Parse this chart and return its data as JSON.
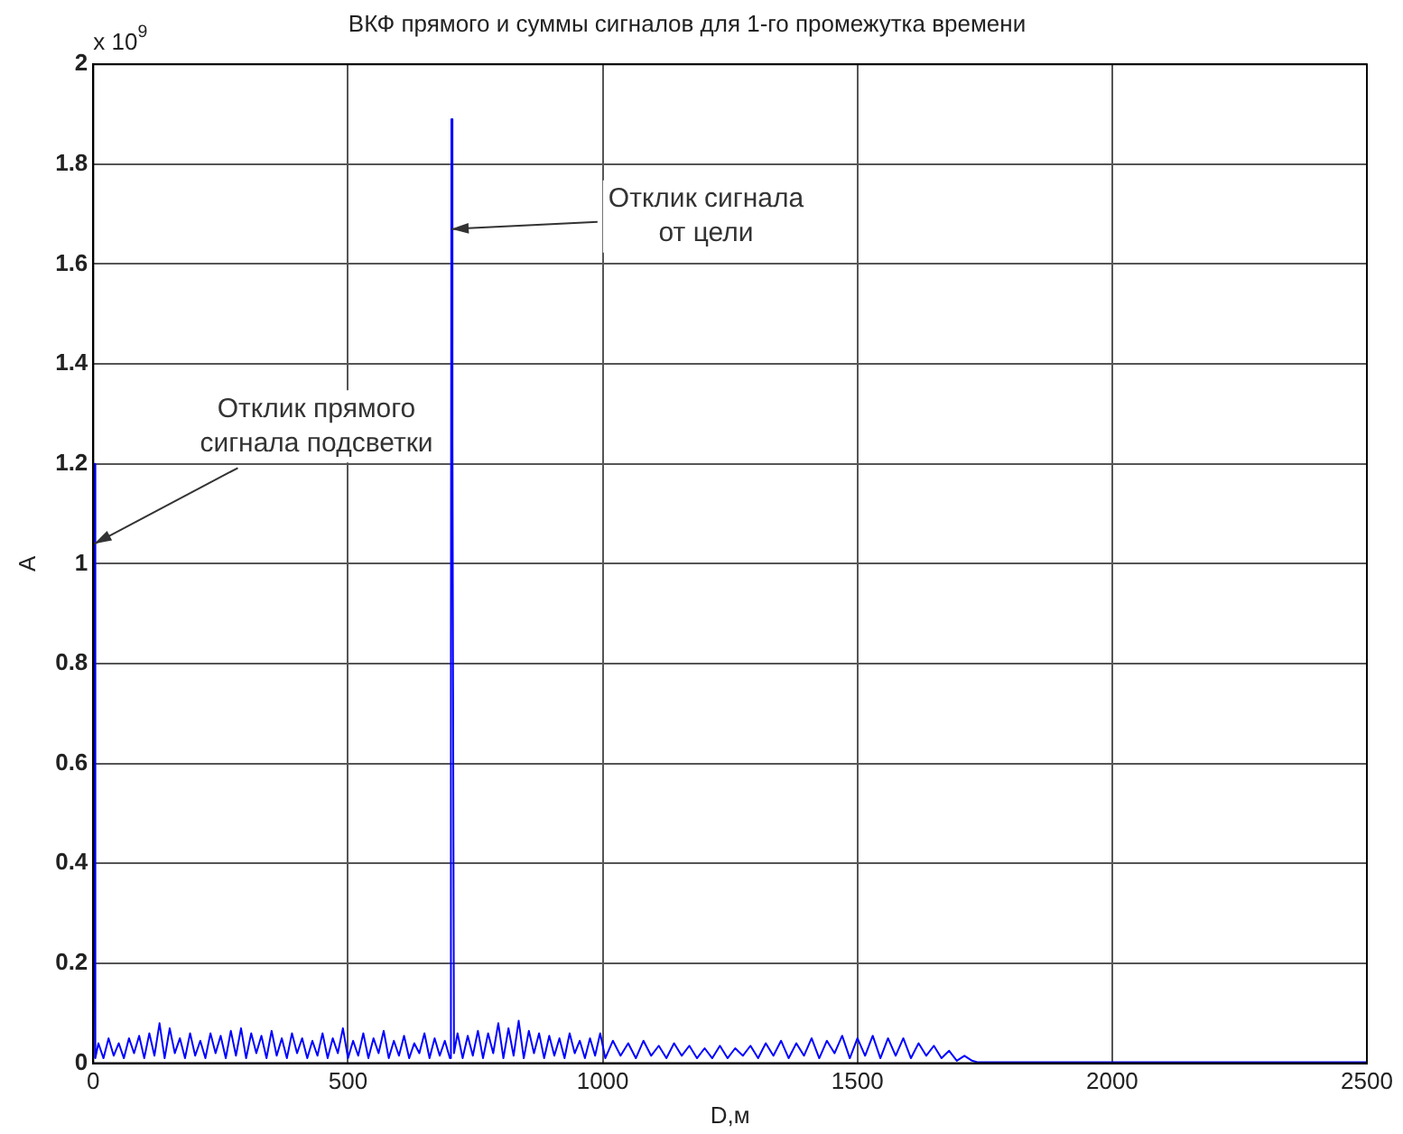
{
  "chart_data": {
    "type": "line",
    "title": "ВКФ прямого и суммы сигналов для 1-го промежутка времени",
    "xlabel": "D,м",
    "ylabel": "A",
    "xlim": [
      0,
      2500
    ],
    "xticks": [
      0,
      500,
      1000,
      1500,
      2000,
      2500
    ],
    "ylim": [
      0,
      2
    ],
    "yticks": [
      0,
      0.2,
      0.4,
      0.6,
      0.8,
      1,
      1.2,
      1.4,
      1.6,
      1.8,
      2
    ],
    "grid": true,
    "marker": "none",
    "line_style": "solid",
    "annotations": [
      "x 10$^{9}$",
      {
        "text": "Отклик прямого\nсигнала подсветки",
        "x": 2,
        "y": 1.04
      },
      {
        "text": "Отклик сигнала\nот цели",
        "x": 703,
        "y": 1.67
      }
    ],
    "series": [
      {
        "color": "#0000ff",
        "x": [
          0,
          2,
          4,
          10,
          20,
          30,
          40,
          50,
          60,
          70,
          80,
          90,
          100,
          110,
          120,
          130,
          140,
          150,
          160,
          170,
          180,
          190,
          200,
          210,
          220,
          230,
          240,
          250,
          260,
          270,
          280,
          290,
          300,
          310,
          320,
          330,
          340,
          350,
          360,
          370,
          380,
          390,
          400,
          410,
          420,
          430,
          440,
          450,
          460,
          470,
          480,
          490,
          500,
          510,
          520,
          530,
          540,
          550,
          560,
          570,
          580,
          590,
          600,
          610,
          620,
          630,
          640,
          650,
          660,
          670,
          680,
          690,
          700,
          702,
          703,
          705,
          708,
          715,
          725,
          735,
          745,
          755,
          765,
          775,
          785,
          795,
          805,
          815,
          825,
          835,
          845,
          855,
          865,
          875,
          885,
          895,
          905,
          915,
          925,
          935,
          945,
          955,
          965,
          975,
          985,
          995,
          1005,
          1020,
          1035,
          1050,
          1065,
          1080,
          1095,
          1110,
          1125,
          1140,
          1155,
          1170,
          1185,
          1200,
          1215,
          1230,
          1245,
          1260,
          1275,
          1290,
          1305,
          1320,
          1335,
          1350,
          1365,
          1380,
          1395,
          1410,
          1425,
          1440,
          1455,
          1470,
          1485,
          1500,
          1515,
          1530,
          1545,
          1560,
          1575,
          1590,
          1605,
          1620,
          1635,
          1650,
          1665,
          1680,
          1695,
          1710,
          1725,
          1735,
          2500
        ],
        "values": [
          0.01,
          1.2,
          0.01,
          0.04,
          0.01,
          0.05,
          0.015,
          0.04,
          0.01,
          0.05,
          0.02,
          0.055,
          0.01,
          0.06,
          0.015,
          0.08,
          0.01,
          0.07,
          0.02,
          0.05,
          0.01,
          0.06,
          0.015,
          0.045,
          0.01,
          0.06,
          0.02,
          0.055,
          0.01,
          0.065,
          0.015,
          0.07,
          0.01,
          0.06,
          0.02,
          0.055,
          0.01,
          0.065,
          0.015,
          0.05,
          0.01,
          0.06,
          0.02,
          0.05,
          0.01,
          0.045,
          0.015,
          0.06,
          0.01,
          0.05,
          0.02,
          0.07,
          0.01,
          0.045,
          0.015,
          0.06,
          0.01,
          0.05,
          0.02,
          0.065,
          0.01,
          0.045,
          0.015,
          0.055,
          0.01,
          0.04,
          0.02,
          0.06,
          0.01,
          0.05,
          0.015,
          0.045,
          0.01,
          0.84,
          1.89,
          1.25,
          0.02,
          0.06,
          0.01,
          0.055,
          0.015,
          0.065,
          0.01,
          0.06,
          0.02,
          0.08,
          0.01,
          0.07,
          0.015,
          0.085,
          0.01,
          0.065,
          0.02,
          0.06,
          0.01,
          0.055,
          0.015,
          0.05,
          0.01,
          0.06,
          0.02,
          0.045,
          0.01,
          0.05,
          0.015,
          0.06,
          0.01,
          0.045,
          0.015,
          0.04,
          0.01,
          0.045,
          0.015,
          0.035,
          0.01,
          0.04,
          0.015,
          0.035,
          0.01,
          0.03,
          0.01,
          0.035,
          0.01,
          0.03,
          0.015,
          0.035,
          0.01,
          0.04,
          0.015,
          0.045,
          0.01,
          0.04,
          0.015,
          0.05,
          0.01,
          0.045,
          0.02,
          0.055,
          0.01,
          0.05,
          0.015,
          0.055,
          0.01,
          0.05,
          0.015,
          0.05,
          0.01,
          0.04,
          0.015,
          0.035,
          0.01,
          0.025,
          0.005,
          0.015,
          0.005,
          0.002,
          0.002
        ]
      }
    ]
  }
}
